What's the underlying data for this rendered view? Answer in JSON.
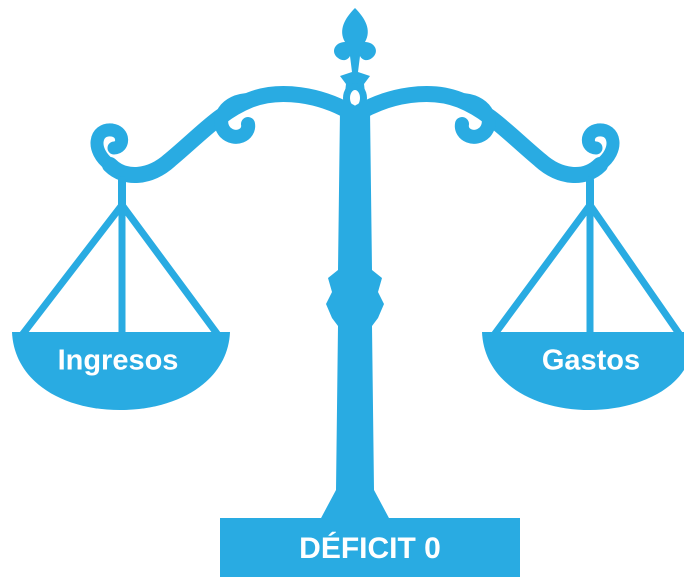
{
  "left_pan": {
    "label": "Ingresos"
  },
  "right_pan": {
    "label": "Gastos"
  },
  "base": {
    "label": "DÉFICIT 0"
  }
}
